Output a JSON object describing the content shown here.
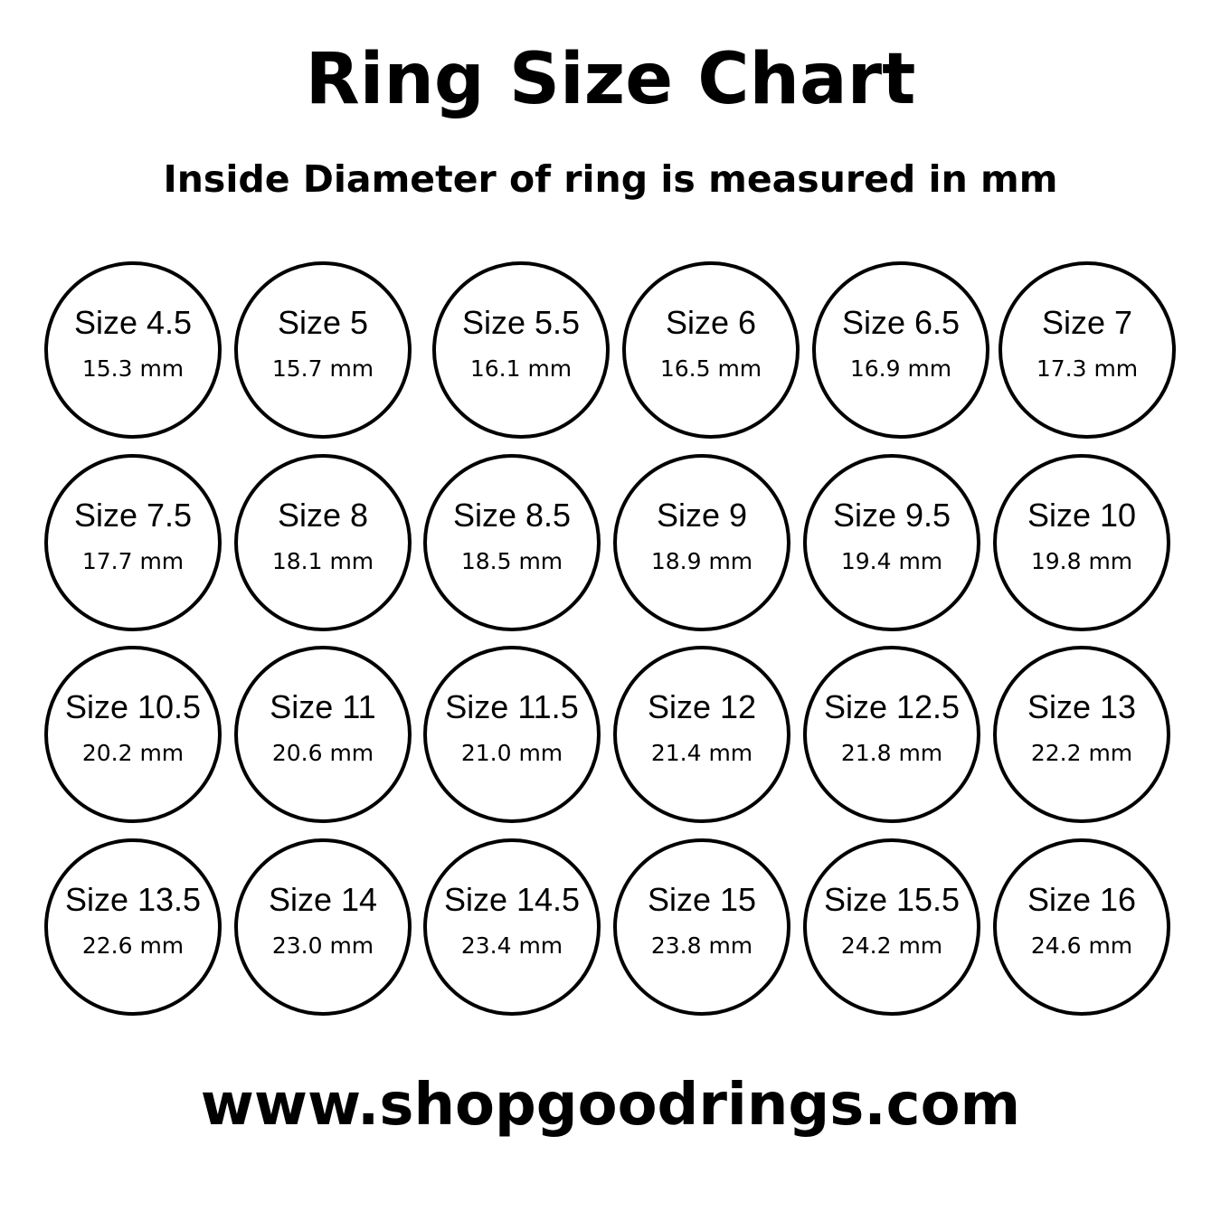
{
  "title": "Ring Size Chart",
  "subtitle": "Inside Diameter of ring is measured in mm",
  "website": "www.shopgoodrings.com",
  "colors": {
    "stroke": "#000000",
    "background": "#ffffff"
  },
  "rings": [
    {
      "size": "Size 4.5",
      "mm": "15.3 mm"
    },
    {
      "size": "Size 5",
      "mm": "15.7 mm"
    },
    {
      "size": "Size 5.5",
      "mm": "16.1 mm"
    },
    {
      "size": "Size 6",
      "mm": "16.5 mm"
    },
    {
      "size": "Size 6.5",
      "mm": "16.9 mm"
    },
    {
      "size": "Size 7",
      "mm": "17.3 mm"
    },
    {
      "size": "Size 7.5",
      "mm": "17.7 mm"
    },
    {
      "size": "Size 8",
      "mm": "18.1 mm"
    },
    {
      "size": "Size 8.5",
      "mm": "18.5 mm"
    },
    {
      "size": "Size 9",
      "mm": "18.9 mm"
    },
    {
      "size": "Size 9.5",
      "mm": "19.4 mm"
    },
    {
      "size": "Size 10",
      "mm": "19.8 mm"
    },
    {
      "size": "Size 10.5",
      "mm": "20.2 mm"
    },
    {
      "size": "Size 11",
      "mm": "20.6 mm"
    },
    {
      "size": "Size 11.5",
      "mm": "21.0 mm"
    },
    {
      "size": "Size 12",
      "mm": "21.4 mm"
    },
    {
      "size": "Size 12.5",
      "mm": "21.8 mm"
    },
    {
      "size": "Size 13",
      "mm": "22.2 mm"
    },
    {
      "size": "Size 13.5",
      "mm": "22.6 mm"
    },
    {
      "size": "Size 14",
      "mm": "23.0 mm"
    },
    {
      "size": "Size 14.5",
      "mm": "23.4 mm"
    },
    {
      "size": "Size 15",
      "mm": "23.8 mm"
    },
    {
      "size": "Size 15.5",
      "mm": "24.2 mm"
    },
    {
      "size": "Size 16",
      "mm": "24.6 mm"
    }
  ]
}
